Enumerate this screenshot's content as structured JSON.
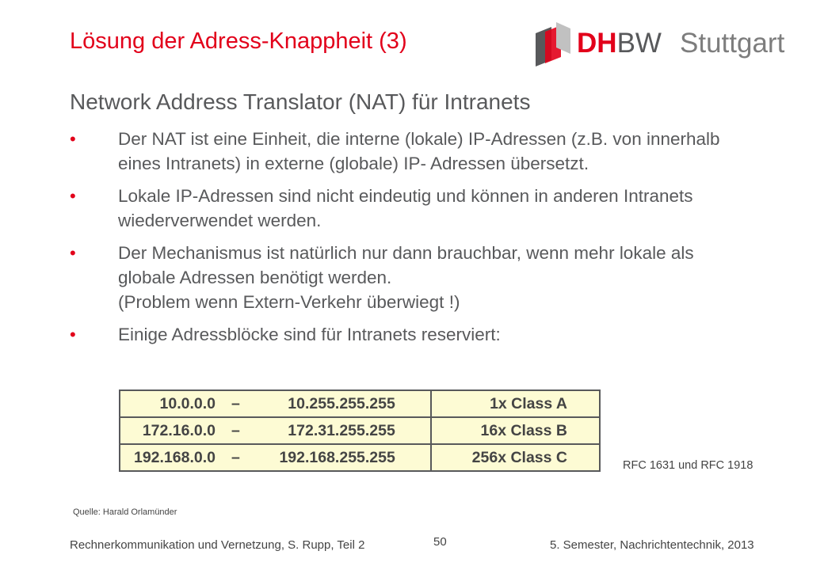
{
  "slide": {
    "title": "Lösung der Adress-Knappheit (3)",
    "subtitle": "Network Address Translator (NAT) für Intranets"
  },
  "logo": {
    "d_h": "DH",
    "b_w": "BW",
    "city": "Stuttgart",
    "accent_color": "#e2001a"
  },
  "bullets": [
    {
      "marker": "•",
      "text": "Der NAT ist eine Einheit, die interne (lokale) IP-Adressen (z.B. von innerhalb eines Intranets) in externe (globale) IP- Adressen übersetzt."
    },
    {
      "marker": "•",
      "text": "Lokale IP-Adressen sind nicht eindeutig und können in anderen Intranets wiederverwendet werden."
    },
    {
      "marker": "•",
      "line1": "Der Mechanismus ist natürlich nur dann brauchbar, wenn mehr lokale als globale Adressen benötigt werden.",
      "line2": "(Problem wenn Extern-Verkehr überwiegt !)"
    },
    {
      "marker": "•",
      "text": "Einige Adressblöcke sind für Intranets reserviert:"
    }
  ],
  "address_table": {
    "rows": [
      {
        "start": "10.0.0.0",
        "sep": "–",
        "end": "10.255.255.255",
        "class": "1x Class A"
      },
      {
        "start": "172.16.0.0",
        "sep": "–",
        "end": "172.31.255.255",
        "class": "16x Class B"
      },
      {
        "start": "192.168.0.0",
        "sep": "–",
        "end": "192.168.255.255",
        "class": "256x Class C"
      }
    ],
    "fill_color": "#fdfbd4"
  },
  "rfc_note": "RFC 1631 und RFC 1918",
  "source": "Quelle: Harald Orlamünder",
  "footer": {
    "left": "Rechnerkommunikation und Vernetzung, S. Rupp, Teil 2",
    "page": "50",
    "right": "5. Semester, Nachrichtentechnik, 2013"
  }
}
